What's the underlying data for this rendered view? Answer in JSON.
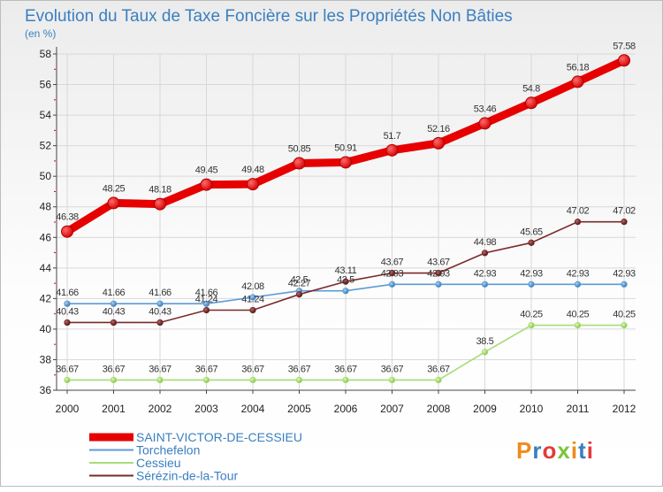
{
  "chart_data": {
    "type": "line",
    "title": "Evolution du Taux de Taxe Foncière sur les Propriétés Non Bâties",
    "ylabel": "(en %)",
    "xlabel": "",
    "ylim": [
      36,
      58
    ],
    "yticks": [
      36,
      38,
      40,
      42,
      44,
      46,
      48,
      50,
      52,
      54,
      56,
      58
    ],
    "categories": [
      "2000",
      "2001",
      "2002",
      "2003",
      "2004",
      "2005",
      "2006",
      "2007",
      "2008",
      "2009",
      "2010",
      "2011",
      "2012"
    ],
    "grid": true,
    "legend_position": "bottom-left",
    "series": [
      {
        "name": "SAINT-VICTOR-DE-CESSIEU",
        "color": "#e60000",
        "values": [
          46.38,
          48.25,
          48.18,
          49.45,
          49.48,
          50.85,
          50.91,
          51.7,
          52.16,
          53.46,
          54.8,
          56.18,
          57.58
        ]
      },
      {
        "name": "Torchefelon",
        "color": "#5b9bd5",
        "values": [
          41.66,
          41.66,
          41.66,
          41.66,
          42.08,
          42.5,
          42.5,
          42.93,
          42.93,
          42.93,
          42.93,
          42.93,
          42.93
        ]
      },
      {
        "name": "Cessieu",
        "color": "#a6dc78",
        "values": [
          36.67,
          36.67,
          36.67,
          36.67,
          36.67,
          36.67,
          36.67,
          36.67,
          36.67,
          38.5,
          40.25,
          40.25,
          40.25
        ]
      },
      {
        "name": "Sérézin-de-la-Tour",
        "color": "#7a2a2a",
        "values": [
          40.43,
          40.43,
          40.43,
          41.24,
          41.24,
          42.27,
          43.11,
          43.67,
          43.67,
          44.98,
          45.65,
          47.02,
          47.02
        ]
      }
    ]
  },
  "brand": "Proxiti"
}
